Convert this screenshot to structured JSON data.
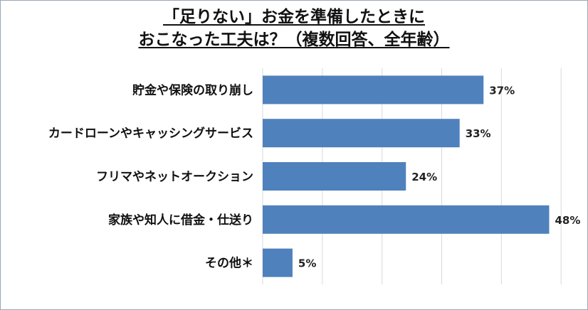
{
  "chart_data": {
    "type": "bar",
    "orientation": "horizontal",
    "title_lines": [
      "「足りない」お金を準備したときに",
      "おこなった工夫は？（複数回答、全年齢）"
    ],
    "categories": [
      "貯金や保険の取り崩し",
      "カードローンやキャッシングサービス",
      "フリマやネットオークション",
      "家族や知人に借金・仕送り",
      "その他＊"
    ],
    "values": [
      37,
      33,
      24,
      48,
      5
    ],
    "value_labels": [
      "37%",
      "33%",
      "24%",
      "48%",
      "5%"
    ],
    "unit": "%",
    "xlim": [
      0,
      52
    ],
    "grid": true,
    "bar_color": "#4f81bd",
    "gridline_color": "#d9d9d9"
  }
}
